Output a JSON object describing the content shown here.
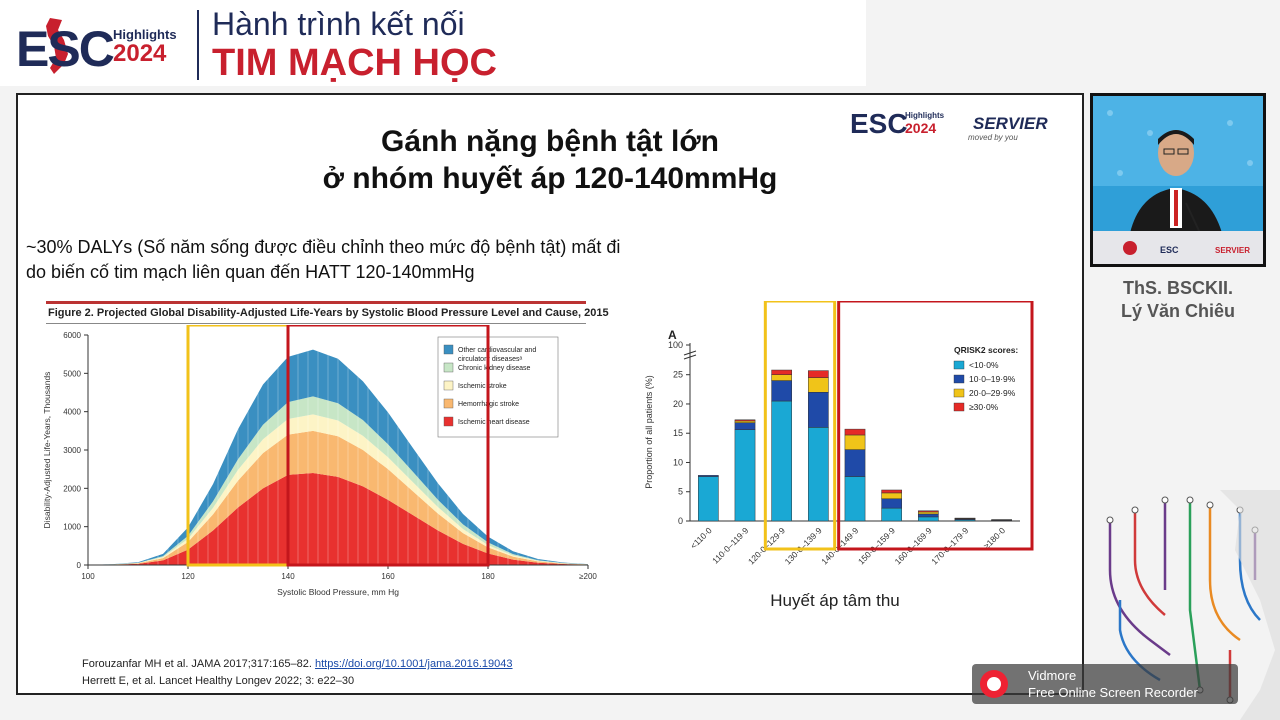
{
  "header": {
    "logo_mark": "ESC",
    "logo_highlights": "Highlights",
    "logo_year": "2024",
    "line1": "Hành trình kết nối",
    "line2": "TIM MẠCH HỌC"
  },
  "slide": {
    "logo_mark": "ESC",
    "logo_highlights": "Highlights",
    "logo_year": "2024",
    "sponsor": "SERVIER",
    "sponsor_tagline": "moved by you",
    "title_line1": "Gánh nặng bệnh tật lớn",
    "title_line2": "ở nhóm huyết áp 120-140mmHg",
    "body_line1": "~30% DALYs (Số năm sống được điều chỉnh theo mức độ bệnh tật) mất đi",
    "body_line2": "do biến cố tim mạch liên quan đến HATT 120-140mmHg",
    "ref1_text": "Forouzanfar MH et al. JAMA 2017;317:165–82. ",
    "ref1_link": "https://doi.org/10.1001/jama.2016.19043",
    "ref2_text": "Herrett E, et al. Lancet Healthy Longev 2022; 3: e22–30",
    "highlight_colors": {
      "yellow": "#f2c21a",
      "red": "#c4161c"
    }
  },
  "speaker": {
    "name_line1": "ThS. BSCKII.",
    "name_line2": "Lý Văn Chiêu",
    "podium_logo": "ESC"
  },
  "recorder_overlay": {
    "line1": "Vidmore",
    "line2": "Free Online Screen Recorder"
  },
  "chart_data": [
    {
      "type": "area",
      "title": "Figure 2. Projected Global Disability-Adjusted Life-Years by Systolic Blood Pressure Level and Cause, 2015",
      "xlabel": "Systolic Blood Pressure, mm Hg",
      "ylabel": "Disability-Adjusted Life-Years, Thousands",
      "xlim": [
        100,
        200
      ],
      "ylim": [
        0,
        6000
      ],
      "x_ticks": [
        "100",
        "120",
        "140",
        "160",
        "180",
        "≥200"
      ],
      "y_ticks": [
        "0",
        "1000",
        "2000",
        "3000",
        "4000",
        "5000",
        "6000"
      ],
      "legend_position": "top-right",
      "x": [
        100,
        105,
        110,
        115,
        120,
        125,
        130,
        135,
        140,
        145,
        150,
        155,
        160,
        165,
        170,
        175,
        180,
        185,
        190,
        195,
        200
      ],
      "series": [
        {
          "name": "Ischemic heart disease",
          "color": "#e8312f",
          "values": [
            0,
            10,
            30,
            120,
            400,
            900,
            1500,
            2000,
            2350,
            2400,
            2300,
            2050,
            1700,
            1300,
            900,
            550,
            300,
            140,
            60,
            25,
            10
          ]
        },
        {
          "name": "Hemorrhagic stroke",
          "color": "#f9b870",
          "values": [
            0,
            5,
            15,
            60,
            200,
            420,
            700,
            920,
            1050,
            1100,
            1060,
            950,
            800,
            620,
            440,
            280,
            160,
            80,
            35,
            15,
            5
          ]
        },
        {
          "name": "Ischemic stroke",
          "color": "#fdf4c6",
          "values": [
            0,
            2,
            6,
            25,
            80,
            170,
            280,
            360,
            410,
            430,
            410,
            370,
            310,
            240,
            170,
            110,
            60,
            30,
            13,
            6,
            2
          ]
        },
        {
          "name": "Chronic kidney disease",
          "color": "#c7e6c6",
          "values": [
            0,
            2,
            6,
            25,
            80,
            170,
            280,
            380,
            440,
            470,
            450,
            410,
            340,
            270,
            190,
            120,
            70,
            35,
            15,
            6,
            2
          ]
        },
        {
          "name": "Other cardiovascular and circulatory diseases",
          "color": "#3a8fc1",
          "values": [
            0,
            5,
            15,
            60,
            220,
            450,
            780,
            1050,
            1180,
            1220,
            1160,
            1010,
            830,
            620,
            430,
            270,
            150,
            75,
            32,
            13,
            5
          ]
        }
      ],
      "legend_labels": [
        "Other cardiovascular and circulatory diseasesᵃ",
        "Chronic kidney disease",
        "Ischemic stroke",
        "Hemorrhagic stroke",
        "Ischemic heart disease"
      ],
      "highlight_ranges": [
        {
          "color": "yellow",
          "from": 120,
          "to": 140
        },
        {
          "color": "red",
          "from": 140,
          "to": 180
        }
      ]
    },
    {
      "type": "bar",
      "panel_label": "A",
      "ylabel": "Proportion of all patients (%)",
      "xlabel": "Huyết áp tâm thu",
      "categories": [
        "<110·0",
        "110·0–119·9",
        "120·0–129·9",
        "130·0–139·9",
        "140·0–149·9",
        "150·0–159·9",
        "160·0–169·9",
        "170·0–179·9",
        "≥180·0"
      ],
      "y_ticks": [
        "0",
        "5",
        "10",
        "15",
        "20",
        "25",
        "100"
      ],
      "ylim": [
        0,
        100
      ],
      "legend_title": "QRISK2 scores:",
      "legend_position": "top-right",
      "series": [
        {
          "name": "<10·0%",
          "color": "#1aa8d4",
          "values": [
            7.6,
            15.6,
            20.5,
            16.0,
            7.6,
            2.2,
            0.7,
            0.2,
            0.1
          ]
        },
        {
          "name": "10·0–19·9%",
          "color": "#1f4aa8",
          "values": [
            0.2,
            1.2,
            3.5,
            6.0,
            4.6,
            1.6,
            0.5,
            0.15,
            0.05
          ]
        },
        {
          "name": "20·0–29·9%",
          "color": "#f0c419",
          "values": [
            0.0,
            0.3,
            1.0,
            2.5,
            2.5,
            1.0,
            0.35,
            0.1,
            0.05
          ]
        },
        {
          "name": "≥30·0%",
          "color": "#e52b27",
          "values": [
            0.0,
            0.2,
            0.8,
            1.2,
            1.0,
            0.5,
            0.2,
            0.05,
            0.05
          ]
        }
      ],
      "highlight_ranges": [
        {
          "color": "yellow",
          "from": "120·0–129·9",
          "to": "130·0–139·9"
        },
        {
          "color": "red",
          "from": "140·0–149·9",
          "to": "≥180·0"
        }
      ]
    }
  ]
}
